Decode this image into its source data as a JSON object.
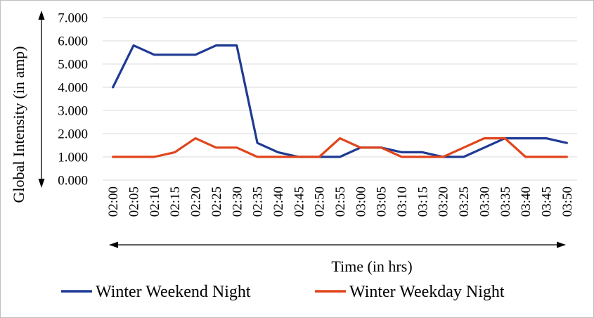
{
  "chart_data": {
    "type": "line",
    "title": "",
    "xlabel": "Time (in hrs)",
    "ylabel": "Global Intensity (in amp)",
    "ylim": [
      0,
      7
    ],
    "y_ticks": [
      "0.000",
      "1.000",
      "2.000",
      "3.000",
      "4.000",
      "5.000",
      "6.000",
      "7.000"
    ],
    "categories": [
      "02:00",
      "02:05",
      "02:10",
      "02:15",
      "02:20",
      "02:25",
      "02:30",
      "02:35",
      "02:40",
      "02:45",
      "02:50",
      "02:55",
      "03:00",
      "03:05",
      "03:10",
      "03:15",
      "03:20",
      "03:25",
      "03:30",
      "03:35",
      "03:40",
      "03:45",
      "03:50"
    ],
    "grid": true,
    "legend_position": "bottom",
    "series": [
      {
        "name": "Winter Weekend Night",
        "color": "#1f3a93",
        "values": [
          4.0,
          5.8,
          5.4,
          5.4,
          5.4,
          5.8,
          5.8,
          1.6,
          1.2,
          1.0,
          1.0,
          1.0,
          1.4,
          1.4,
          1.2,
          1.2,
          1.0,
          1.0,
          1.4,
          1.8,
          1.8,
          1.8,
          1.6
        ]
      },
      {
        "name": "Winter Weekday Night",
        "color": "#e0451c",
        "values": [
          1.0,
          1.0,
          1.0,
          1.2,
          1.8,
          1.4,
          1.4,
          1.0,
          1.0,
          1.0,
          1.0,
          1.8,
          1.4,
          1.4,
          1.0,
          1.0,
          1.0,
          1.4,
          1.8,
          1.8,
          1.0,
          1.0,
          1.0
        ]
      }
    ]
  }
}
